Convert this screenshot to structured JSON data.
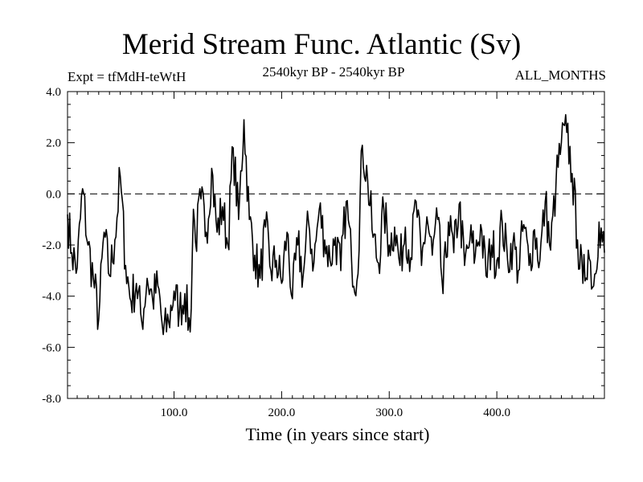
{
  "chart_data": {
    "type": "line",
    "title": "Merid Stream Func. Atlantic (Sv)",
    "subtitle_left": "Expt = tfMdH-teWtH",
    "subtitle_center": "2540kyr BP - 2540kyr BP",
    "subtitle_right": "ALL_MONTHS",
    "xlabel": "Time (in years since start)",
    "ylabel": "",
    "xlim": [
      1,
      500
    ],
    "ylim": [
      -8,
      4
    ],
    "xticks": [
      100,
      200,
      300,
      400
    ],
    "xtick_labels": [
      "100.0",
      "200.0",
      "300.0",
      "400.0"
    ],
    "yticks": [
      4,
      2,
      0,
      -2,
      -4,
      -6,
      -8
    ],
    "ytick_labels": [
      "4.0",
      "2.0",
      "0.0",
      "-2.0",
      "-4.0",
      "-6.0",
      "-8.0"
    ],
    "reference_line": {
      "y": 0,
      "style": "dashed"
    },
    "series": [
      {
        "name": "Merid Stream Func. Atlantic",
        "x": [
          1,
          5,
          10,
          15,
          20,
          25,
          30,
          35,
          40,
          45,
          50,
          55,
          60,
          65,
          70,
          75,
          80,
          85,
          90,
          95,
          100,
          105,
          110,
          115,
          118,
          120,
          125,
          130,
          135,
          140,
          145,
          150,
          155,
          160,
          165,
          170,
          175,
          180,
          185,
          190,
          195,
          200,
          205,
          210,
          215,
          220,
          225,
          230,
          235,
          240,
          245,
          250,
          255,
          260,
          265,
          270,
          275,
          280,
          285,
          290,
          295,
          300,
          305,
          310,
          315,
          320,
          325,
          330,
          335,
          340,
          345,
          350,
          355,
          360,
          365,
          370,
          375,
          380,
          385,
          390,
          395,
          400,
          405,
          410,
          415,
          420,
          425,
          430,
          435,
          440,
          445,
          450,
          455,
          460,
          465,
          470,
          475,
          480,
          485,
          490,
          495,
          500
        ],
        "y": [
          -0.8,
          -2.3,
          -2.9,
          0.2,
          -2.0,
          -3.3,
          -4.9,
          -1.5,
          -3.2,
          -1.8,
          0.7,
          -2.8,
          -4.2,
          -3.5,
          -5.0,
          -3.3,
          -4.1,
          -3.6,
          -5.5,
          -5.0,
          -3.8,
          -4.6,
          -3.9,
          -5.4,
          -0.6,
          -1.9,
          -0.2,
          -1.5,
          1.0,
          -1.5,
          -0.5,
          -2.0,
          1.8,
          -1.0,
          2.9,
          -1.0,
          -2.4,
          -3.3,
          -1.3,
          -3.0,
          -2.6,
          -3.5,
          -1.5,
          -4.1,
          -2.0,
          -3.2,
          -1.1,
          -2.7,
          -0.6,
          -1.8,
          -2.6,
          -1.7,
          -3.0,
          -0.3,
          -2.6,
          -3.4,
          1.9,
          0.5,
          -1.7,
          -2.7,
          -0.6,
          -2.0,
          -1.3,
          -2.8,
          -1.3,
          -2.5,
          -0.3,
          -2.8,
          -0.9,
          -2.4,
          -1.0,
          -3.9,
          -1.1,
          -2.3,
          -0.4,
          -2.8,
          -1.8,
          -2.4,
          -1.2,
          -3.2,
          -2.0,
          -2.6,
          -1.1,
          -2.6,
          -1.9,
          -3.0,
          -1.2,
          -2.8,
          -1.4,
          -2.6,
          -0.3,
          -2.2,
          0.4,
          2.0,
          2.4,
          0.8,
          -1.8,
          -3.5,
          -2.2,
          -3.6,
          -1.1,
          -2.3
        ]
      }
    ]
  }
}
